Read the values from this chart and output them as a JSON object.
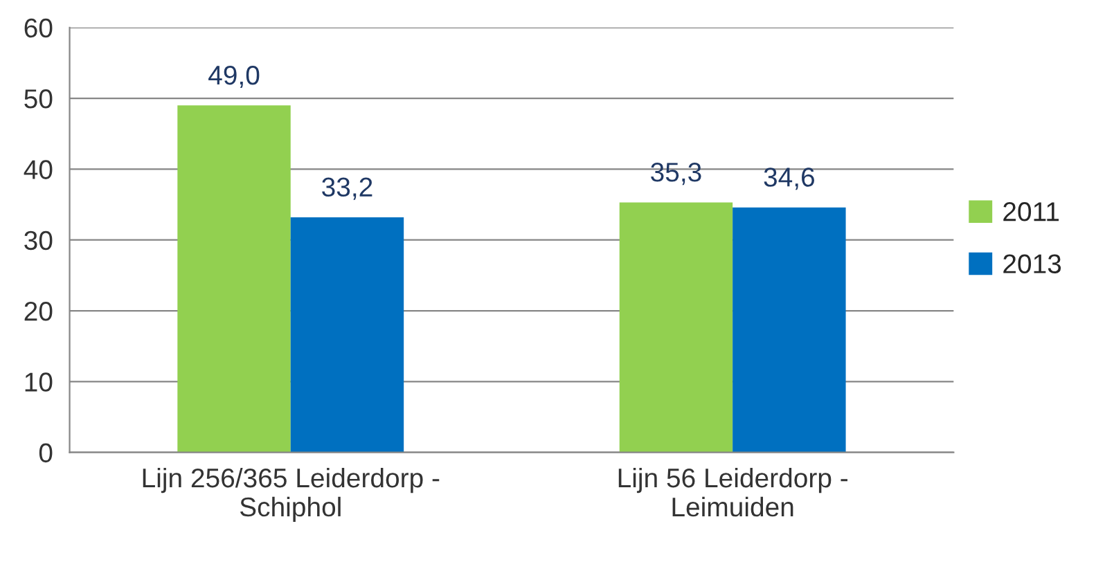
{
  "chart_data": {
    "type": "bar",
    "categories": [
      "Lijn 256/365 Leiderdorp -\nSchiphol",
      "Lijn 56 Leiderdorp -\nLeimuiden"
    ],
    "series": [
      {
        "name": "2011",
        "color": "#92d050",
        "values": [
          49.0,
          35.3
        ],
        "value_labels": [
          "49,0",
          "35,3"
        ]
      },
      {
        "name": "2013",
        "color": "#0070c0",
        "values": [
          33.2,
          34.6
        ],
        "value_labels": [
          "33,2",
          "34,6"
        ]
      }
    ],
    "ylim": [
      0,
      60
    ],
    "yticks": [
      0,
      10,
      20,
      30,
      40,
      50,
      60
    ],
    "grid": "y",
    "legend": "right"
  }
}
